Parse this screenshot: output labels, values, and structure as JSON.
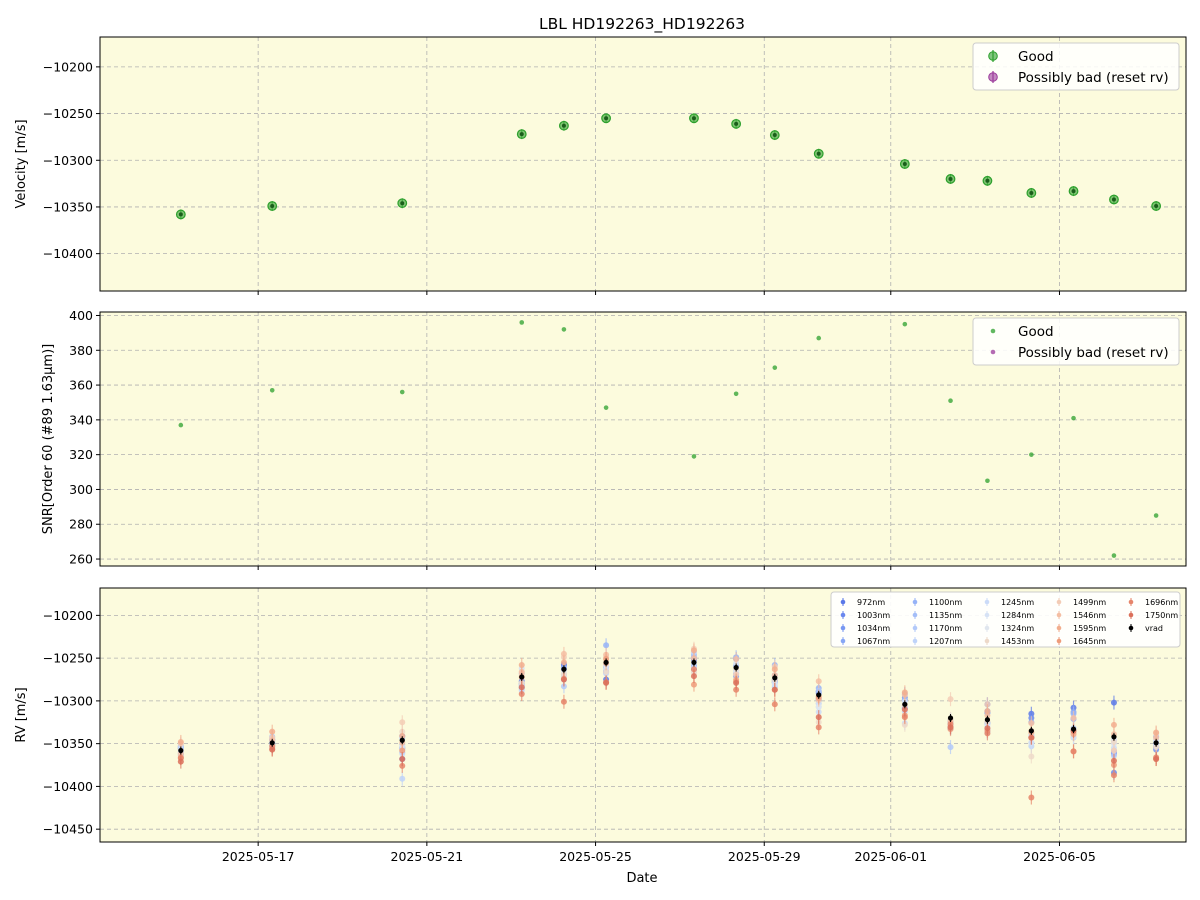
{
  "chart_data": {
    "title": "LBL HD192263_HD192263",
    "xlabel": "Date",
    "x_range": [
      "2025-05-13T06:00",
      "2025-06-08T00:00"
    ],
    "x_ticks": [
      "2025-05-17",
      "2025-05-21",
      "2025-05-25",
      "2025-05-29",
      "2025-06-01",
      "2025-06-05"
    ],
    "dates": [
      "2025-05-15T04:00",
      "2025-05-17T08:00",
      "2025-05-20T10:00",
      "2025-05-23T06:00",
      "2025-05-24T06:00",
      "2025-05-25T06:00",
      "2025-05-27T08:00",
      "2025-05-28T08:00",
      "2025-05-29T06:00",
      "2025-05-30T07:00",
      "2025-06-01T08:00",
      "2025-06-02T10:00",
      "2025-06-03T07:00",
      "2025-06-04T08:00",
      "2025-06-05T08:00",
      "2025-06-06T07:00",
      "2025-06-07T07:00"
    ],
    "panels": [
      {
        "type": "scatter",
        "ylabel": "Velocity [m/s]",
        "ylim": [
          -10440,
          -10168
        ],
        "y_ticks": [
          -10400,
          -10350,
          -10300,
          -10250,
          -10200
        ],
        "series": [
          {
            "name": "Good",
            "color": "#2ca02c",
            "values": [
              -10358,
              -10349,
              -10346,
              -10272,
              -10263,
              -10255,
              -10255,
              -10261,
              -10273,
              -10293,
              -10304,
              -10320,
              -10322,
              -10335,
              -10333,
              -10342,
              -10349
            ]
          },
          {
            "name": "Possibly bad (reset rv)",
            "color": "#9b3a9b",
            "values": []
          }
        ]
      },
      {
        "type": "scatter",
        "ylabel": "SNR[Order 60 (#89 1.63μm)]",
        "ylim": [
          256,
          402
        ],
        "y_ticks": [
          260,
          280,
          300,
          320,
          340,
          360,
          380,
          400
        ],
        "series": [
          {
            "name": "Good",
            "color": "#2ca02c",
            "values": [
              337,
              357,
              356,
              396,
              392,
              347,
              319,
              355,
              370,
              387,
              395,
              351,
              305,
              320,
              341,
              262,
              285
            ]
          },
          {
            "name": "Possibly bad (reset rv)",
            "color": "#9b3a9b",
            "values": []
          }
        ]
      },
      {
        "type": "scatter",
        "ylabel": "RV [m/s]",
        "ylim": [
          -10465,
          -10168
        ],
        "y_ticks": [
          -10450,
          -10400,
          -10350,
          -10300,
          -10250,
          -10200
        ],
        "vrad": {
          "name": "vrad",
          "color": "#000000",
          "values": [
            -10358,
            -10349,
            -10346,
            -10272,
            -10263,
            -10255,
            -10255,
            -10261,
            -10273,
            -10293,
            -10304,
            -10320,
            -10322,
            -10335,
            -10333,
            -10342,
            -10349
          ]
        },
        "wavelengths": [
          {
            "name": "972nm",
            "color": "#5a78e8",
            "offsets": [
              2,
              -2,
              -22,
              -5,
              5,
              -20,
              3,
              2,
              -5,
              4,
              5,
              -10,
              18,
              20,
              25,
              40,
              -5
            ]
          },
          {
            "name": "1003nm",
            "color": "#6a88ee",
            "offsets": [
              5,
              4,
              -10,
              -8,
              6,
              -5,
              -4,
              10,
              -3,
              -6,
              -5,
              -5,
              8,
              15,
              12,
              -42,
              -6
            ]
          },
          {
            "name": "1034nm",
            "color": "#7898f2",
            "offsets": [
              -4,
              3,
              5,
              -12,
              0,
              -10,
              -8,
              -10,
              -2,
              2,
              8,
              -4,
              -4,
              -6,
              -2,
              -20,
              -8
            ]
          },
          {
            "name": "1067nm",
            "color": "#87a6f5",
            "offsets": [
              3,
              -3,
              -8,
              4,
              2,
              -12,
              2,
              -7,
              3,
              -4,
              -4,
              -12,
              10,
              10,
              20,
              -18,
              -4
            ]
          },
          {
            "name": "1100nm",
            "color": "#96b3f7",
            "offsets": [
              -2,
              4,
              -14,
              -10,
              -6,
              20,
              6,
              12,
              15,
              8,
              12,
              -2,
              -3,
              -8,
              18,
              -4,
              7
            ]
          },
          {
            "name": "1135nm",
            "color": "#a4bef8",
            "offsets": [
              4,
              7,
              -5,
              -14,
              -12,
              -11,
              9,
              -3,
              -5,
              -10,
              5,
              -10,
              -13,
              -4,
              12,
              -16,
              3
            ]
          },
          {
            "name": "1170nm",
            "color": "#b2c9f9",
            "offsets": [
              -6,
              1,
              3,
              -7,
              -20,
              -6,
              -3,
              2,
              -11,
              5,
              -2,
              -34,
              -11,
              -14,
              1,
              -22,
              -2
            ]
          },
          {
            "name": "1207nm",
            "color": "#bfd3f9",
            "offsets": [
              2,
              -5,
              -45,
              -9,
              -12,
              -2,
              12,
              -6,
              -6,
              -14,
              -8,
              -9,
              -15,
              -18,
              -10,
              -4,
              -4
            ]
          },
          {
            "name": "1245nm",
            "color": "#cbdbf8",
            "offsets": [
              6,
              0,
              -16,
              -16,
              -8,
              -13,
              -6,
              -4,
              -9,
              -20,
              -22,
              -7,
              -5,
              -6,
              -4,
              -13,
              1
            ]
          },
          {
            "name": "1284nm",
            "color": "#d6e2f5",
            "offsets": [
              -3,
              4,
              -11,
              10,
              -5,
              -8,
              -11,
              5,
              -7,
              -10,
              3,
              -6,
              -8,
              -14,
              -9,
              -8,
              -3
            ]
          },
          {
            "name": "1324nm",
            "color": "#e0e6ee",
            "offsets": [
              0,
              -6,
              -7,
              4,
              -3,
              -4,
              0,
              -4,
              2,
              -14,
              -6,
              -2,
              -12,
              -4,
              -2,
              -3,
              2
            ]
          },
          {
            "name": "1453nm",
            "color": "#edd9c9",
            "offsets": [
              -8,
              -3,
              10,
              -7,
              -6,
              -11,
              -12,
              -1,
              -2,
              -32,
              -24,
              -1,
              -2,
              -30,
              -4,
              -6,
              -5
            ]
          },
          {
            "name": "1499nm",
            "color": "#f3ccb6",
            "offsets": [
              8,
              6,
              21,
              4,
              14,
              6,
              16,
              -8,
              13,
              -6,
              -1,
              22,
              18,
              0,
              -4,
              -16,
              11
            ]
          },
          {
            "name": "1546nm",
            "color": "#f4bea3",
            "offsets": [
              -4,
              3,
              -3,
              6,
              18,
              9,
              5,
              10,
              3,
              16,
              11,
              -4,
              5,
              9,
              13,
              3,
              6
            ]
          },
          {
            "name": "1595nm",
            "color": "#f2ae8e",
            "offsets": [
              10,
              13,
              5,
              14,
              8,
              -1,
              14,
              -14,
              10,
              -4,
              14,
              -10,
              10,
              -2,
              -6,
              14,
              12
            ]
          },
          {
            "name": "1645nm",
            "color": "#ee9c7b",
            "offsets": [
              -8,
              -7,
              -12,
              0,
              -11,
              4,
              -26,
              -16,
              -14,
              -2,
              -13,
              -13,
              -13,
              -8,
              -26,
              -33,
              -19
            ]
          },
          {
            "name": "1696nm",
            "color": "#e6856a",
            "offsets": [
              -9,
              -4,
              -30,
              -20,
              -38,
              -23,
              -8,
              -26,
              -31,
              -38,
              -15,
              -7,
              -16,
              -78,
              -26,
              -45,
              -17
            ]
          },
          {
            "name": "1750nm",
            "color": "#db705a",
            "offsets": [
              -13,
              -8,
              -22,
              -12,
              -12,
              -24,
              -16,
              -18,
              -14,
              -26,
              -6,
              -11,
              -10,
              -8,
              -2,
              -28,
              -19
            ]
          }
        ]
      }
    ],
    "legend_main": [
      "Good",
      "Possibly bad (reset rv)"
    ],
    "legend_placement": "top-right"
  }
}
